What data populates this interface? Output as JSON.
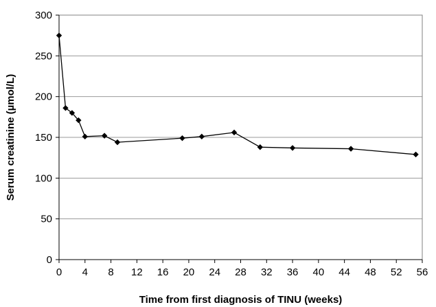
{
  "chart_data": {
    "type": "line",
    "title": "",
    "xlabel": "Time from first diagnosis of TINU (weeks)",
    "ylabel": "Serum creatinine (µmol/L)",
    "xlim": [
      0,
      56
    ],
    "ylim": [
      0,
      300
    ],
    "xticks": [
      0,
      4,
      8,
      12,
      16,
      20,
      24,
      28,
      32,
      36,
      40,
      44,
      48,
      52,
      56
    ],
    "yticks": [
      0,
      50,
      100,
      150,
      200,
      250,
      300
    ],
    "grid": "horizontal",
    "legend": "none",
    "series": [
      {
        "color": "#000000",
        "marker": "diamond",
        "x": [
          0,
          1,
          2,
          3,
          4,
          7,
          9,
          19,
          22,
          27,
          31,
          36,
          45,
          55
        ],
        "y": [
          275,
          186,
          180,
          171,
          151,
          152,
          144,
          149,
          151,
          156,
          138,
          137,
          136,
          129
        ]
      }
    ]
  }
}
